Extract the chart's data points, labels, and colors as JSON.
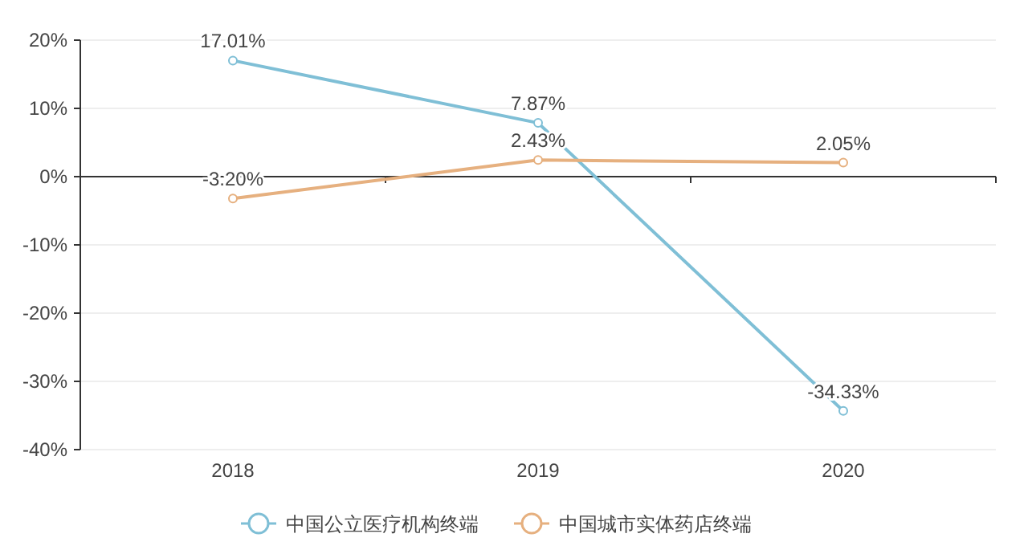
{
  "chart_data": {
    "type": "line",
    "categories": [
      "2018",
      "2019",
      "2020"
    ],
    "series": [
      {
        "name": "中国公立医疗机构终端",
        "color": "#7fbfd6",
        "values": [
          17.01,
          7.87,
          -34.33
        ],
        "value_labels": [
          "17.01%",
          "7.87%",
          "-34.33%"
        ]
      },
      {
        "name": "中国城市实体药店终端",
        "color": "#e6b07f",
        "values": [
          -3.2,
          2.43,
          2.05
        ],
        "value_labels": [
          "-3.20%",
          "2.43%",
          "2.05%"
        ]
      }
    ],
    "ylim": [
      -40,
      20
    ],
    "yticks": [
      {
        "value": -40,
        "label": "-40%"
      },
      {
        "value": -30,
        "label": "-30%"
      },
      {
        "value": -20,
        "label": "-20%"
      },
      {
        "value": -10,
        "label": "-10%"
      },
      {
        "value": 0,
        "label": "0%"
      },
      {
        "value": 10,
        "label": "10%"
      },
      {
        "value": 20,
        "label": "20%"
      }
    ],
    "grid": "y",
    "legend": "bottom",
    "marker": "circle",
    "line_style": "solid"
  }
}
